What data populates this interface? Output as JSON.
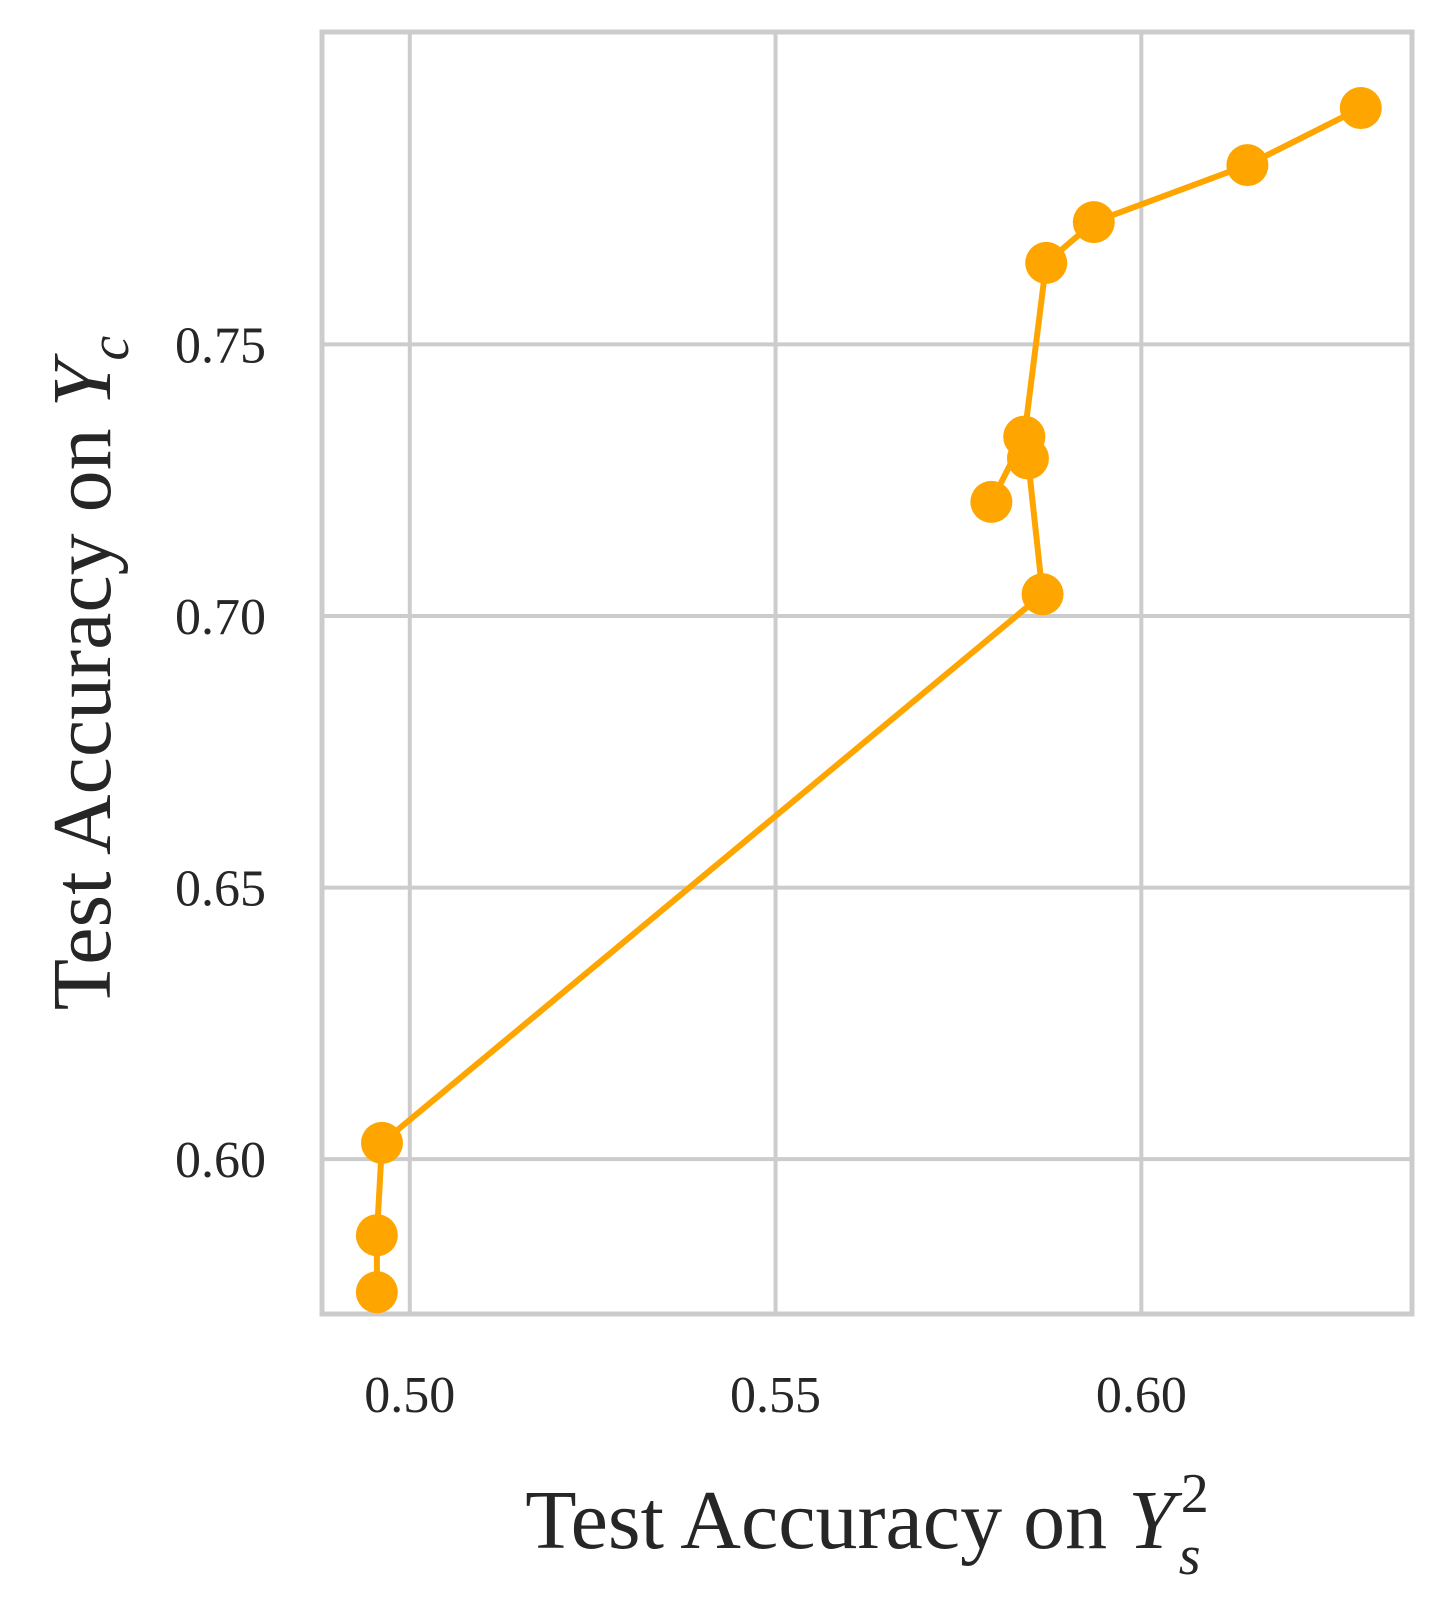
{
  "chart_data": {
    "type": "line",
    "title": "",
    "xlabel": {
      "prefix": "Test Accuracy on ",
      "symbol": "Y",
      "subscript": "s",
      "superscript": "2"
    },
    "ylabel": {
      "prefix": "Test Accuracy on ",
      "symbol": "Y",
      "subscript": "c"
    },
    "xlim": [
      0.488,
      0.637
    ],
    "ylim": [
      0.5715,
      0.8075
    ],
    "xticks": [
      0.5,
      0.55,
      0.6
    ],
    "yticks": [
      0.6,
      0.65,
      0.7,
      0.75
    ],
    "xtick_labels": [
      "0.50",
      "0.55",
      "0.60"
    ],
    "ytick_labels": [
      "0.60",
      "0.65",
      "0.70",
      "0.75"
    ],
    "grid": true,
    "series": [
      {
        "color": "#FFA500",
        "marker": "circle",
        "points": [
          {
            "x": 0.4955,
            "y": 0.5755
          },
          {
            "x": 0.4955,
            "y": 0.586
          },
          {
            "x": 0.4962,
            "y": 0.603
          },
          {
            "x": 0.5865,
            "y": 0.704
          },
          {
            "x": 0.5845,
            "y": 0.729
          },
          {
            "x": 0.584,
            "y": 0.733
          },
          {
            "x": 0.5795,
            "y": 0.721
          },
          {
            "x": 0.584,
            "y": 0.733
          },
          {
            "x": 0.587,
            "y": 0.765
          },
          {
            "x": 0.5935,
            "y": 0.7725
          },
          {
            "x": 0.6145,
            "y": 0.783
          },
          {
            "x": 0.63,
            "y": 0.7935
          }
        ]
      }
    ]
  }
}
